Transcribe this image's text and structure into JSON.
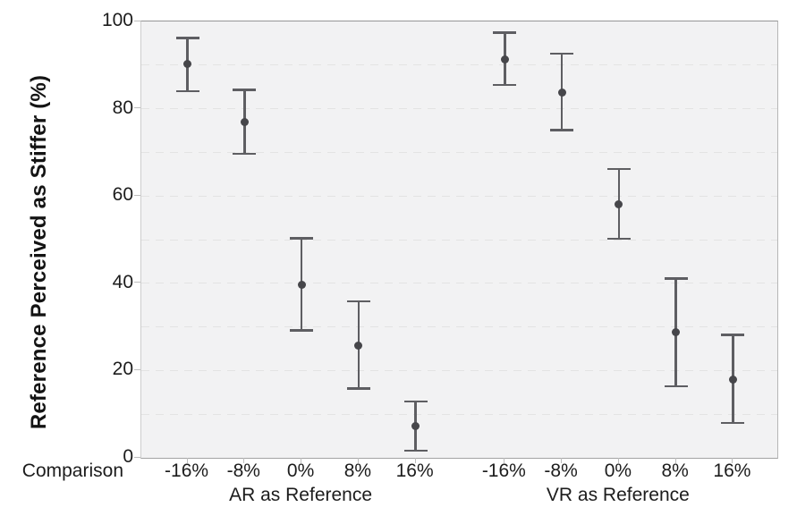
{
  "chart_data": {
    "type": "scatter",
    "subtype": "means-with-error-bars",
    "title": "",
    "ylabel": "Reference Perceived as Stiffer (%)",
    "xlabel": "Comparison",
    "ylim": [
      0,
      100
    ],
    "yticks": [
      0,
      20,
      40,
      60,
      80,
      100
    ],
    "grid": true,
    "grid_step": 10,
    "legend": "none",
    "categories": [
      "-16%",
      "-8%",
      "0%",
      "8%",
      "16%"
    ],
    "series": [
      {
        "name": "AR as Reference",
        "means": [
          90.2,
          77.0,
          39.6,
          25.8,
          7.2
        ],
        "ci_low": [
          84.0,
          69.7,
          29.2,
          15.9,
          1.6
        ],
        "ci_high": [
          96.2,
          84.3,
          50.3,
          35.8,
          12.9
        ]
      },
      {
        "name": "VR as Reference",
        "means": [
          91.3,
          83.7,
          58.1,
          28.7,
          18.0
        ],
        "ci_low": [
          85.4,
          75.1,
          50.2,
          16.4,
          8.0
        ],
        "ci_high": [
          97.4,
          92.6,
          66.2,
          41.1,
          28.2
        ]
      }
    ],
    "colors": {
      "marker": "#46464a",
      "error_bar": "#5e5e62",
      "plot_bg": "#f2f2f3",
      "gridline": "#e3e3e3",
      "axis_text": "#1c1c1c"
    }
  }
}
